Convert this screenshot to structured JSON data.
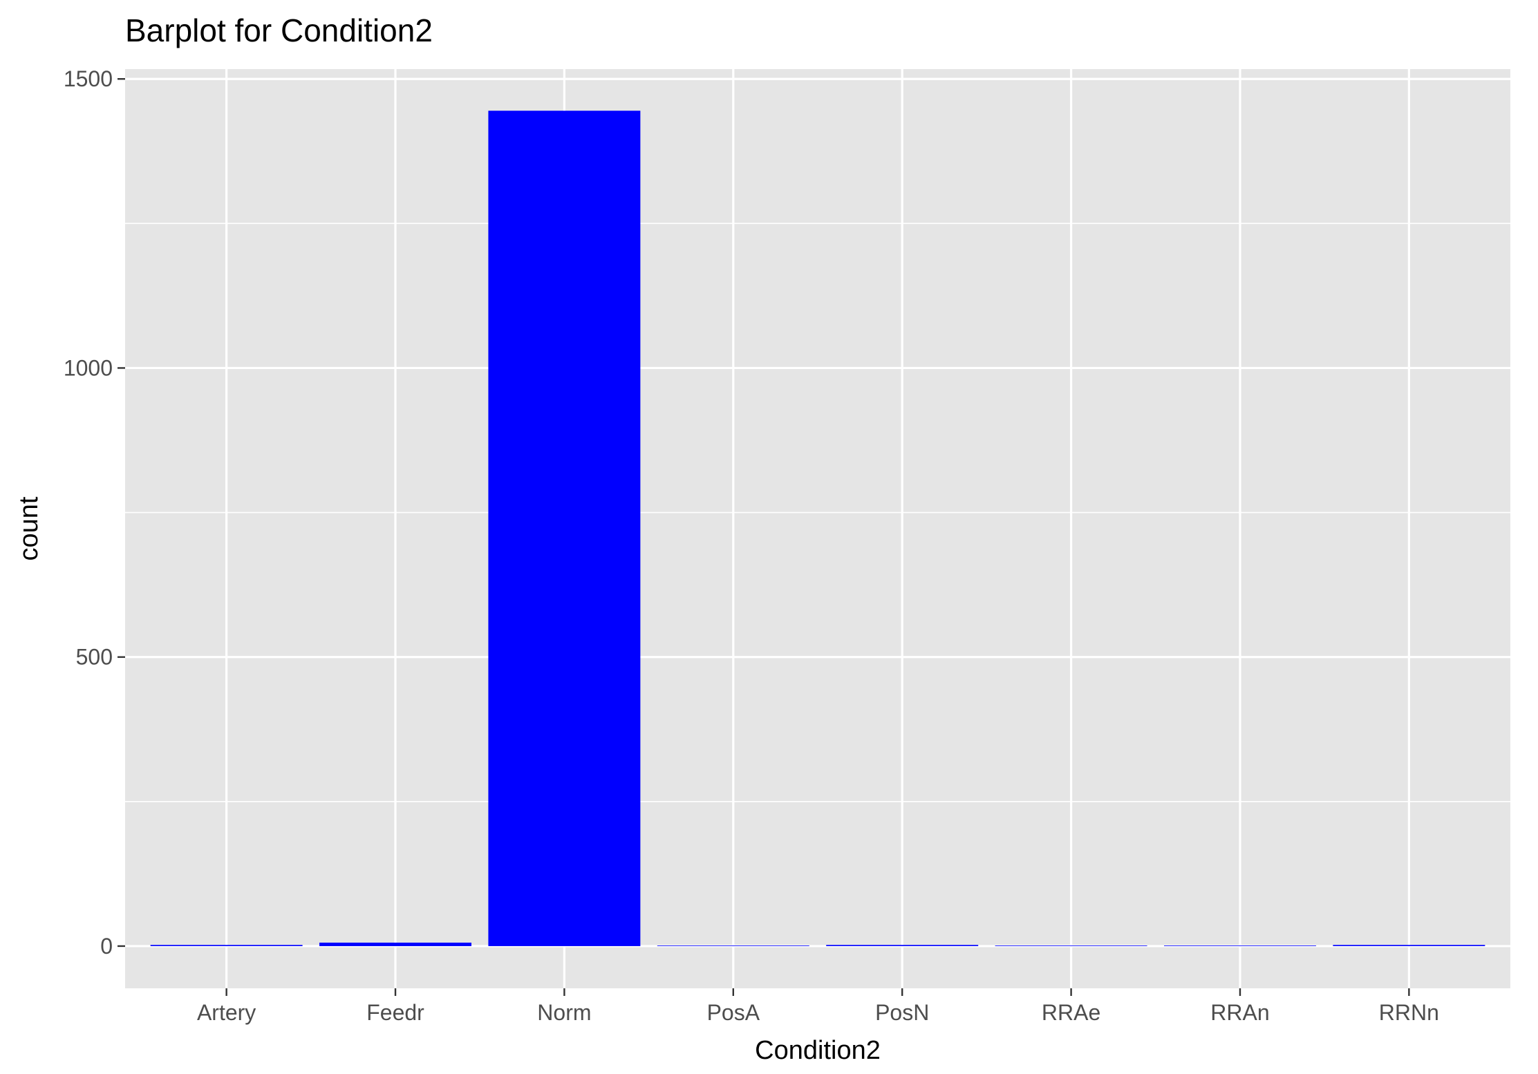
{
  "chart_data": {
    "type": "bar",
    "title": "Barplot for Condition2",
    "xlabel": "Condition2",
    "ylabel": "count",
    "categories": [
      "Artery",
      "Feedr",
      "Norm",
      "PosA",
      "PosN",
      "RRAe",
      "RRAn",
      "RRNn"
    ],
    "values": [
      2,
      6,
      1445,
      1,
      2,
      1,
      1,
      2
    ],
    "ylim": [
      -73,
      1517
    ],
    "yticks": [
      0,
      500,
      1000,
      1500
    ],
    "yticks_labels": [
      "0",
      "500",
      "1000",
      "1500"
    ],
    "grid": true,
    "legend": "none",
    "bar_color": "#0000ff",
    "panel_color": "#e5e5e5",
    "grid_color": "#ffffff"
  }
}
